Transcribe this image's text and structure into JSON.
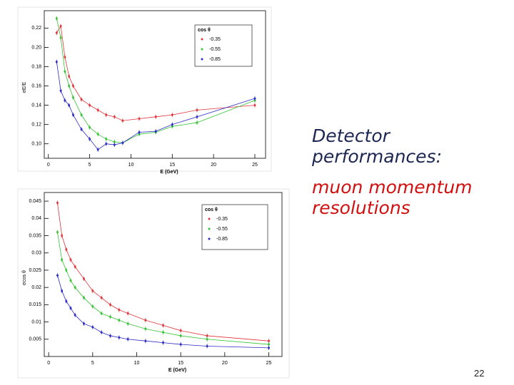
{
  "chart_data": [
    {
      "type": "line",
      "x_label": "E (GeV)",
      "y_label": "σE/E",
      "legend_title": "cos θ",
      "legend": "upper right",
      "grid": false,
      "x": [
        1,
        1.5,
        2,
        2.5,
        3,
        4,
        5,
        6,
        7,
        8,
        9,
        11,
        13,
        15,
        18,
        25
      ],
      "series": [
        {
          "name": "-0.35",
          "color": "#e0343a",
          "values": [
            0.215,
            0.222,
            0.19,
            0.17,
            0.16,
            0.146,
            0.14,
            0.135,
            0.13,
            0.128,
            0.124,
            0.126,
            0.128,
            0.13,
            0.135,
            0.14
          ]
        },
        {
          "name": "-0.55",
          "color": "#33c233",
          "values": [
            0.23,
            0.21,
            0.175,
            0.16,
            0.148,
            0.13,
            0.117,
            0.11,
            0.105,
            0.102,
            0.101,
            0.11,
            0.112,
            0.118,
            0.122,
            0.145
          ]
        },
        {
          "name": "-0.85",
          "color": "#2a2ac4",
          "values": [
            0.185,
            0.155,
            0.145,
            0.14,
            0.13,
            0.115,
            0.105,
            0.094,
            0.1,
            0.099,
            0.101,
            0.112,
            0.113,
            0.12,
            0.128,
            0.147
          ]
        }
      ],
      "xlim": [
        -0.5,
        26.3
      ],
      "xticks": [
        0,
        5,
        10,
        15,
        20,
        25
      ],
      "ylim": [
        0.085,
        0.238
      ],
      "yticks": [
        {
          "value": 0.1,
          "label": "0.10"
        },
        0.12,
        0.14,
        0.16,
        0.18,
        {
          "value": 0.2,
          "label": "0.20"
        },
        0.22
      ]
    },
    {
      "type": "line",
      "x_label": "E (GeV)",
      "y_label": "σcos θ",
      "legend_title": "cos θ",
      "legend": "upper right",
      "grid": false,
      "x": [
        1,
        1.5,
        2,
        2.5,
        3,
        4,
        5,
        6,
        7,
        8,
        9,
        11,
        13,
        15,
        18,
        25
      ],
      "series": [
        {
          "name": "-0.35",
          "color": "#e0343a",
          "values": [
            0.0445,
            0.035,
            0.031,
            0.028,
            0.026,
            0.0225,
            0.019,
            0.017,
            0.015,
            0.0135,
            0.0125,
            0.0105,
            0.009,
            0.0075,
            0.006,
            0.0045
          ]
        },
        {
          "name": "-0.55",
          "color": "#33c233",
          "values": [
            0.036,
            0.028,
            0.025,
            0.022,
            0.02,
            0.017,
            0.0145,
            0.0125,
            0.0115,
            0.0105,
            0.0095,
            0.008,
            0.007,
            0.006,
            0.005,
            0.0035
          ]
        },
        {
          "name": "-0.85",
          "color": "#2a2ac4",
          "values": [
            0.0235,
            0.019,
            0.016,
            0.014,
            0.012,
            0.0095,
            0.0085,
            0.007,
            0.006,
            0.0055,
            0.005,
            0.0045,
            0.004,
            0.0035,
            0.003,
            0.0025
          ]
        }
      ],
      "xlim": [
        -0.5,
        26.5
      ],
      "xticks": [
        0,
        5,
        10,
        15,
        20,
        25
      ],
      "ylim": [
        0,
        0.0475
      ],
      "yticks": [
        0.005,
        0.01,
        0.015,
        0.02,
        0.025,
        0.03,
        0.035,
        0.04,
        0.045
      ]
    }
  ],
  "slide": {
    "heading": "Detector performances:",
    "subheading": "muon momentum resolutions",
    "page_number": "22"
  }
}
